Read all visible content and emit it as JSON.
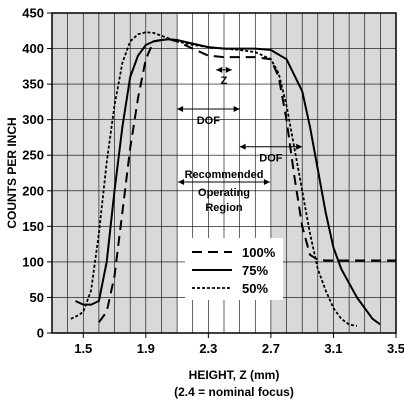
{
  "chart_data": {
    "type": "line",
    "title": "",
    "xlabel": "HEIGHT, Z (mm)",
    "xlabel_note": "(2.4 = nominal focus)",
    "ylabel": "COUNTS PER INCH",
    "xlim": [
      1.3,
      3.5
    ],
    "ylim": [
      0,
      450
    ],
    "x_ticks": [
      1.5,
      1.9,
      2.3,
      2.7,
      3.1,
      3.5
    ],
    "x_tick_labels": [
      "1.5",
      "1.9",
      "2.3",
      "2.7",
      "3.1",
      "3.5"
    ],
    "y_ticks": [
      0,
      50,
      100,
      150,
      200,
      250,
      300,
      350,
      400,
      450
    ],
    "y_tick_labels": [
      "0",
      "50",
      "100",
      "150",
      "200",
      "250",
      "300",
      "350",
      "400",
      "450"
    ],
    "grid": true,
    "shaded_region": {
      "x": [
        2.1,
        2.7
      ],
      "label_lines": [
        "Recommended",
        "Operating",
        "Region"
      ]
    },
    "annotations": [
      {
        "label": "Z",
        "x": [
          2.35,
          2.45
        ],
        "y": 370
      },
      {
        "label": "DOF",
        "x": [
          2.1,
          2.5
        ],
        "y": 315
      },
      {
        "label": "DOF",
        "x": [
          2.5,
          2.9
        ],
        "y": 262
      }
    ],
    "legend_position": "center",
    "series": [
      {
        "name": "100%",
        "style": "dashed",
        "x": [
          1.6,
          1.65,
          1.7,
          1.75,
          1.8,
          1.85,
          1.9,
          1.95,
          2.0,
          2.05,
          2.1,
          2.2,
          2.3,
          2.4,
          2.5,
          2.6,
          2.7,
          2.75,
          2.8,
          2.85,
          2.9,
          2.95,
          3.0,
          3.05,
          3.1,
          3.2,
          3.3,
          3.4,
          3.5
        ],
        "y": [
          15,
          30,
          80,
          170,
          260,
          330,
          385,
          410,
          412,
          413,
          410,
          400,
          390,
          388,
          388,
          388,
          385,
          360,
          300,
          220,
          150,
          110,
          103,
          102,
          102,
          102,
          102,
          102,
          102
        ]
      },
      {
        "name": "75%",
        "style": "solid",
        "x": [
          1.45,
          1.5,
          1.55,
          1.6,
          1.65,
          1.7,
          1.75,
          1.8,
          1.85,
          1.9,
          1.95,
          2.0,
          2.05,
          2.1,
          2.2,
          2.3,
          2.4,
          2.5,
          2.6,
          2.7,
          2.8,
          2.9,
          2.95,
          3.0,
          3.05,
          3.1,
          3.15,
          3.2,
          3.25,
          3.3,
          3.35,
          3.4
        ],
        "y": [
          45,
          40,
          40,
          45,
          100,
          200,
          290,
          360,
          390,
          405,
          410,
          412,
          413,
          412,
          407,
          402,
          400,
          400,
          400,
          398,
          385,
          340,
          290,
          230,
          170,
          120,
          90,
          70,
          50,
          35,
          20,
          12
        ]
      },
      {
        "name": "50%",
        "style": "dotted",
        "x": [
          1.42,
          1.47,
          1.5,
          1.55,
          1.6,
          1.65,
          1.7,
          1.75,
          1.8,
          1.85,
          1.9,
          1.95,
          2.0,
          2.1,
          2.2,
          2.3,
          2.4,
          2.5,
          2.6,
          2.7,
          2.75,
          2.8,
          2.85,
          2.9,
          2.95,
          3.0,
          3.05,
          3.1,
          3.15,
          3.2,
          3.25
        ],
        "y": [
          20,
          25,
          30,
          60,
          140,
          240,
          320,
          380,
          410,
          420,
          423,
          422,
          418,
          410,
          405,
          402,
          400,
          398,
          395,
          385,
          365,
          320,
          260,
          200,
          140,
          90,
          60,
          35,
          20,
          12,
          10
        ]
      }
    ]
  }
}
